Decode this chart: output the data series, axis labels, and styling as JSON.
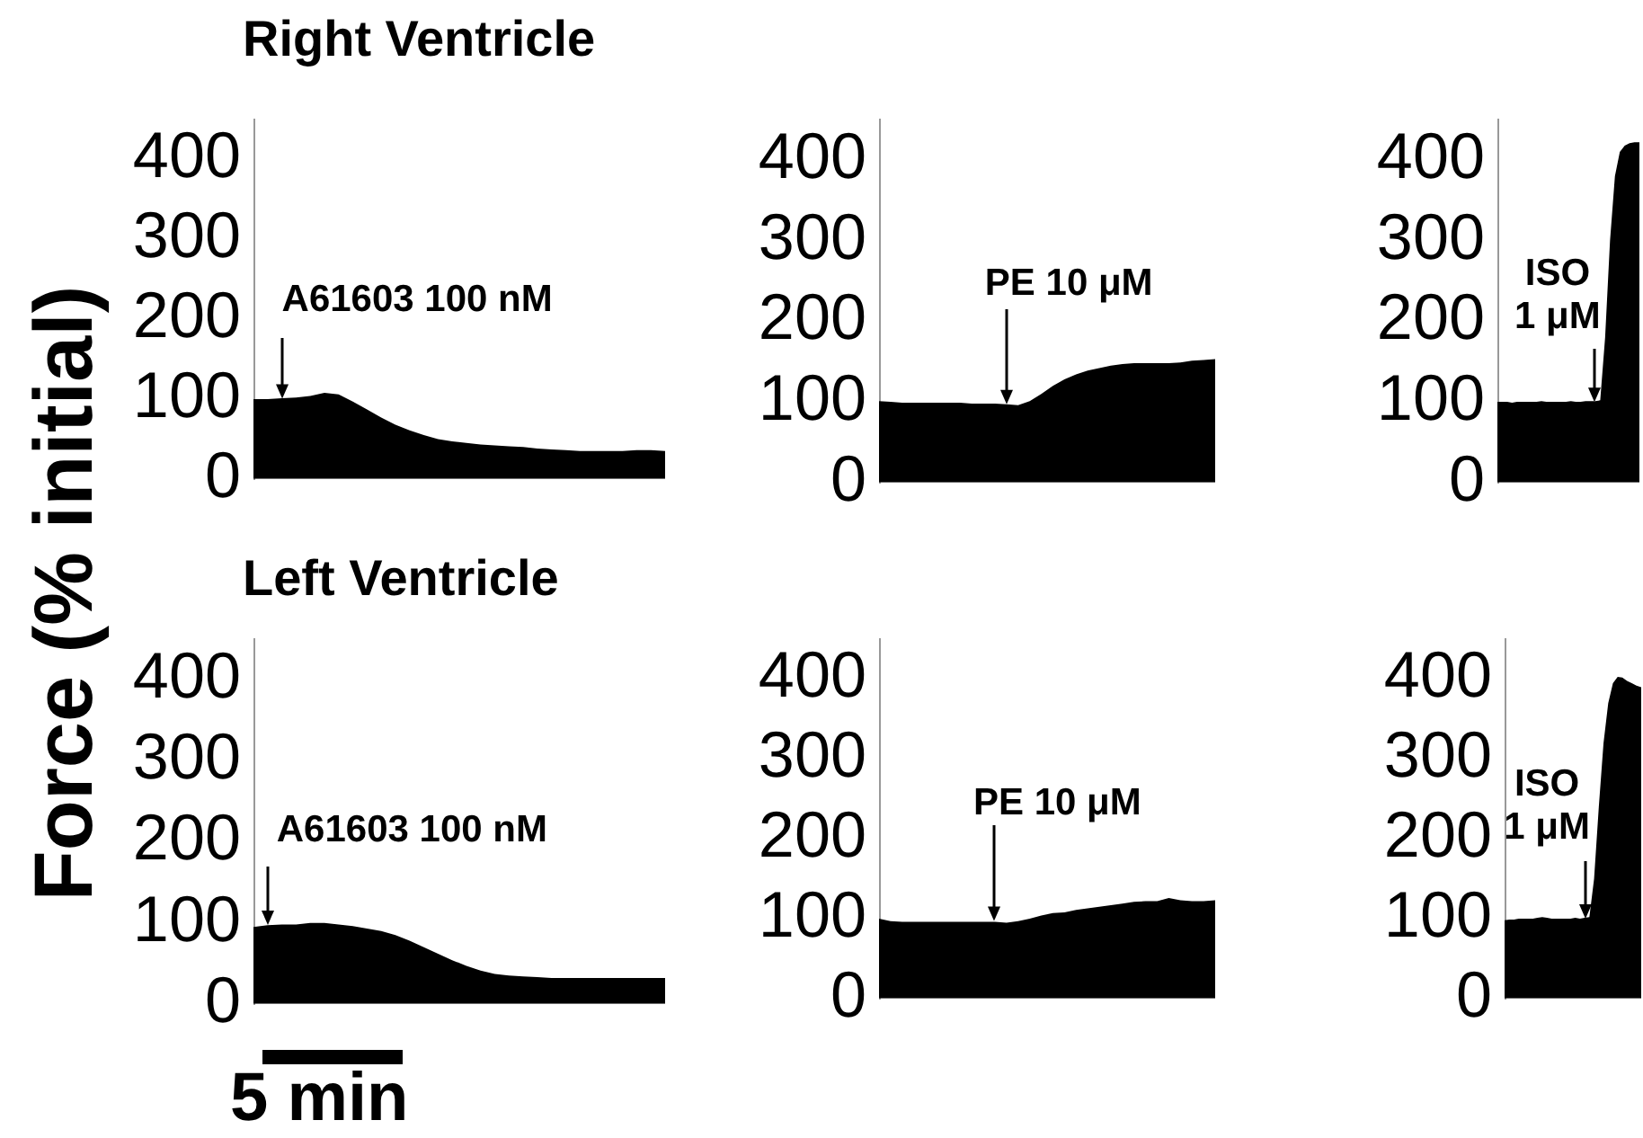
{
  "chart_data": [
    {
      "type": "area",
      "title": "Right Ventricle",
      "ylabel": "Force (% initial)",
      "categories": [
        null,
        null,
        null,
        null,
        null,
        null,
        null,
        null,
        null,
        null,
        null,
        null,
        null,
        null,
        null,
        null,
        null,
        null,
        null,
        null,
        null,
        null,
        null,
        null,
        null,
        null,
        null,
        null,
        null,
        null
      ],
      "values": [
        100,
        100,
        101,
        102,
        104,
        108,
        106,
        97,
        87,
        77,
        68,
        61,
        55,
        50,
        47,
        45,
        43,
        42,
        41,
        40,
        38,
        37,
        36,
        35,
        35,
        35,
        35,
        36,
        36,
        35
      ],
      "color": "#000000",
      "ylim": [
        0,
        450
      ],
      "yticks": [
        0,
        100,
        200,
        300,
        400
      ],
      "tick_labels": "y",
      "annotations": [
        "A61603 100 nM"
      ]
    },
    {
      "type": "area",
      "categories": [
        null,
        null,
        null,
        null,
        null,
        null,
        null,
        null,
        null,
        null,
        null,
        null,
        null,
        null,
        null,
        null,
        null,
        null,
        null,
        null,
        null,
        null,
        null,
        null,
        null,
        null,
        null,
        null,
        null,
        null
      ],
      "values": [
        101,
        100,
        99,
        99,
        99,
        99,
        99,
        99,
        98,
        98,
        98,
        97,
        96,
        101,
        110,
        120,
        128,
        134,
        139,
        142,
        145,
        147,
        148,
        148,
        148,
        148,
        149,
        151,
        152,
        153
      ],
      "color": "#000000",
      "ylim": [
        0,
        450
      ],
      "yticks": [
        0,
        100,
        200,
        300,
        400
      ],
      "tick_labels": "y",
      "annotations": [
        "PE 10 μM"
      ]
    },
    {
      "type": "area",
      "categories": [
        null,
        null,
        null,
        null,
        null,
        null,
        null,
        null,
        null,
        null,
        null,
        null,
        null,
        null,
        null,
        null,
        null,
        null,
        null,
        null,
        null,
        null,
        null,
        null,
        null,
        null,
        null,
        null,
        null,
        null
      ],
      "values": [
        100,
        100,
        100,
        99,
        100,
        100,
        100,
        100,
        100,
        101,
        100,
        100,
        100,
        100,
        100,
        101,
        100,
        100,
        101,
        101,
        101,
        102,
        180,
        300,
        380,
        410,
        418,
        421,
        422,
        422
      ],
      "color": "#000000",
      "ylim": [
        0,
        450
      ],
      "yticks": [
        0,
        100,
        200,
        300,
        400
      ],
      "tick_labels": "y",
      "annotations": [
        "ISO 1 μM"
      ]
    },
    {
      "type": "area",
      "title": "Left Ventricle",
      "categories": [
        null,
        null,
        null,
        null,
        null,
        null,
        null,
        null,
        null,
        null,
        null,
        null,
        null,
        null,
        null,
        null,
        null,
        null,
        null,
        null,
        null,
        null,
        null,
        null,
        null,
        null,
        null,
        null,
        null,
        null
      ],
      "values": [
        95,
        97,
        98,
        98,
        100,
        100,
        98,
        96,
        93,
        90,
        85,
        78,
        70,
        62,
        54,
        47,
        41,
        37,
        35,
        34,
        33,
        32,
        32,
        32,
        32,
        32,
        32,
        32,
        32,
        32
      ],
      "color": "#000000",
      "ylim": [
        0,
        450
      ],
      "yticks": [
        0,
        100,
        200,
        300,
        400
      ],
      "tick_labels": "y",
      "annotations": [
        "A61603 100 nM",
        "5 min"
      ]
    },
    {
      "type": "area",
      "categories": [
        null,
        null,
        null,
        null,
        null,
        null,
        null,
        null,
        null,
        null,
        null,
        null,
        null,
        null,
        null,
        null,
        null,
        null,
        null,
        null,
        null,
        null,
        null,
        null,
        null,
        null,
        null,
        null,
        null,
        null
      ],
      "values": [
        100,
        97,
        96,
        96,
        96,
        96,
        96,
        96,
        96,
        96,
        96,
        95,
        97,
        100,
        104,
        107,
        108,
        111,
        113,
        115,
        117,
        119,
        121,
        122,
        122,
        126,
        123,
        122,
        122,
        123
      ],
      "color": "#000000",
      "ylim": [
        0,
        450
      ],
      "yticks": [
        0,
        100,
        200,
        300,
        400
      ],
      "tick_labels": "y",
      "annotations": [
        "PE 10 μM"
      ]
    },
    {
      "type": "area",
      "categories": [
        null,
        null,
        null,
        null,
        null,
        null,
        null,
        null,
        null,
        null,
        null,
        null,
        null,
        null,
        null,
        null,
        null,
        null,
        null,
        null,
        null,
        null,
        null,
        null,
        null,
        null,
        null,
        null,
        null,
        null
      ],
      "values": [
        98,
        99,
        99,
        100,
        100,
        100,
        100,
        101,
        102,
        101,
        100,
        100,
        100,
        100,
        100,
        101,
        100,
        101,
        102,
        150,
        240,
        320,
        370,
        395,
        403,
        402,
        398,
        395,
        392,
        390
      ],
      "color": "#000000",
      "ylim": [
        0,
        450
      ],
      "yticks": [
        0,
        100,
        200,
        300,
        400
      ],
      "tick_labels": "y",
      "annotations": [
        "ISO 1 μM"
      ]
    }
  ]
}
